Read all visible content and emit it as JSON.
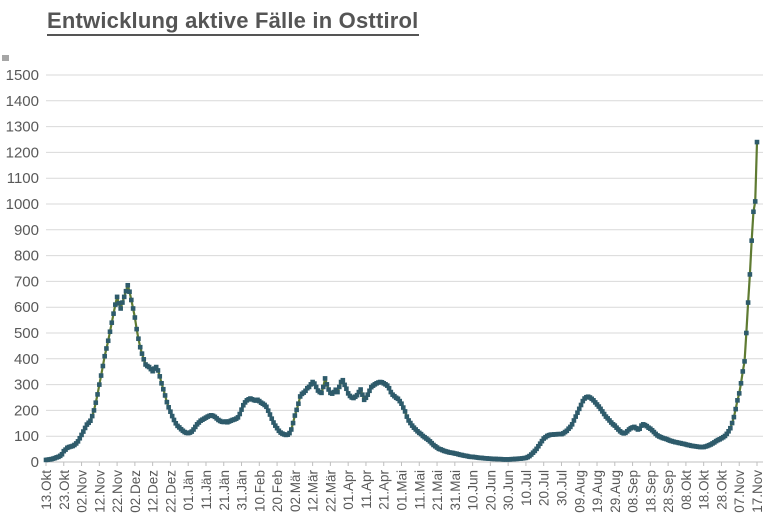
{
  "page": {
    "title": "Entwicklung aktive Fälle in Osttirol"
  },
  "chart_data": {
    "type": "line",
    "title": "Entwicklung aktive Fälle in Osttirol",
    "xlabel": "",
    "ylabel": "",
    "ylim": [
      0,
      1500
    ],
    "y_tick_step": 100,
    "y_tick_labels": [
      "0",
      "100",
      "200",
      "300",
      "400",
      "500",
      "600",
      "700",
      "800",
      "900",
      "1000",
      "1100",
      "1200",
      "1300",
      "1400",
      "1500"
    ],
    "grid": "horizontal",
    "legend": "none",
    "line_color": "#5F7B32",
    "marker_color": "#2E5B6B",
    "marker_shape": "square",
    "grid_color": "#d9d9d9",
    "axis_color": "#bfbfbf",
    "x_tick_interval_days": 10,
    "x_tick_labels": [
      "13.Okt",
      "23.Okt",
      "02.Nov",
      "12.Nov",
      "22.Nov",
      "02.Dez",
      "12.Dez",
      "22.Dez",
      "01.Jän",
      "11.Jän",
      "21.Jän",
      "31.Jän",
      "10.Feb",
      "20.Feb",
      "02.Mär",
      "12.Mär",
      "22.Mär",
      "01.Apr",
      "11.Apr",
      "21.Apr",
      "01.Mai",
      "11.Mai",
      "21.Mai",
      "31.Mai",
      "10.Jun",
      "20.Jun",
      "30.Jun",
      "10.Jul",
      "20.Jul",
      "30.Jul",
      "09.Aug",
      "19.Aug",
      "29.Aug",
      "08.Sep",
      "18.Sep",
      "28.Sep",
      "08.Okt",
      "18.Okt",
      "28.Okt",
      "07.Nov",
      "17.Nov"
    ],
    "series": [
      {
        "name": "aktive Fälle",
        "values": [
          8,
          9,
          10,
          11,
          13,
          15,
          18,
          20,
          24,
          30,
          42,
          48,
          55,
          58,
          60,
          62,
          66,
          72,
          80,
          92,
          105,
          118,
          132,
          145,
          152,
          160,
          178,
          200,
          230,
          262,
          300,
          335,
          372,
          410,
          440,
          470,
          505,
          540,
          575,
          610,
          640,
          615,
          595,
          618,
          640,
          662,
          685,
          660,
          628,
          595,
          560,
          515,
          478,
          445,
          420,
          398,
          378,
          372,
          368,
          360,
          352,
          362,
          368,
          355,
          332,
          305,
          282,
          258,
          232,
          212,
          195,
          178,
          163,
          150,
          140,
          134,
          127,
          121,
          116,
          113,
          112,
          114,
          118,
          126,
          136,
          146,
          153,
          160,
          164,
          168,
          172,
          176,
          179,
          181,
          179,
          175,
          169,
          163,
          159,
          156,
          155,
          157,
          154,
          157,
          160,
          163,
          165,
          168,
          173,
          186,
          203,
          220,
          231,
          239,
          243,
          246,
          243,
          240,
          238,
          241,
          236,
          230,
          226,
          221,
          214,
          199,
          184,
          168,
          153,
          141,
          131,
          121,
          114,
          110,
          107,
          105,
          106,
          112,
          126,
          151,
          180,
          202,
          226,
          254,
          264,
          269,
          276,
          286,
          291,
          301,
          310,
          304,
          291,
          277,
          271,
          268,
          291,
          324,
          301,
          281,
          268,
          265,
          271,
          280,
          271,
          291,
          310,
          317,
          299,
          284,
          266,
          256,
          250,
          248,
          253,
          259,
          271,
          281,
          261,
          241,
          249,
          261,
          276,
          290,
          296,
          301,
          305,
          308,
          310,
          309,
          305,
          301,
          296,
          286,
          271,
          261,
          255,
          249,
          245,
          236,
          226,
          211,
          196,
          176,
          161,
          151,
          141,
          133,
          126,
          119,
          113,
          108,
          101,
          96,
          91,
          86,
          80,
          73,
          66,
          61,
          56,
          51,
          49,
          46,
          43,
          41,
          39,
          37,
          36,
          35,
          33,
          32,
          30,
          28,
          27,
          25,
          24,
          23,
          21,
          20,
          20,
          19,
          18,
          17,
          16,
          16,
          15,
          14,
          14,
          13,
          13,
          12,
          12,
          12,
          11,
          11,
          11,
          10,
          10,
          10,
          10,
          10,
          11,
          11,
          12,
          12,
          13,
          13,
          14,
          15,
          16,
          19,
          23,
          29,
          36,
          43,
          51,
          61,
          71,
          81,
          91,
          96,
          101,
          104,
          106,
          106,
          107,
          107,
          108,
          108,
          108,
          111,
          116,
          121,
          129,
          136,
          146,
          161,
          176,
          191,
          206,
          221,
          236,
          246,
          251,
          253,
          250,
          245,
          239,
          231,
          223,
          215,
          206,
          196,
          186,
          176,
          169,
          161,
          153,
          146,
          141,
          133,
          126,
          119,
          114,
          111,
          113,
          119,
          126,
          131,
          134,
          136,
          131,
          126,
          129,
          141,
          146,
          143,
          139,
          133,
          129,
          123,
          116,
          109,
          103,
          99,
          96,
          93,
          91,
          89,
          86,
          83,
          81,
          79,
          77,
          76,
          74,
          73,
          71,
          70,
          68,
          66,
          65,
          63,
          62,
          61,
          60,
          59,
          58,
          58,
          58,
          60,
          62,
          65,
          68,
          72,
          76,
          81,
          85,
          88,
          92,
          96,
          101,
          109,
          119,
          131,
          151,
          174,
          205,
          239,
          266,
          305,
          351,
          390,
          500,
          618,
          727,
          858,
          970,
          1010,
          1240
        ]
      }
    ]
  }
}
